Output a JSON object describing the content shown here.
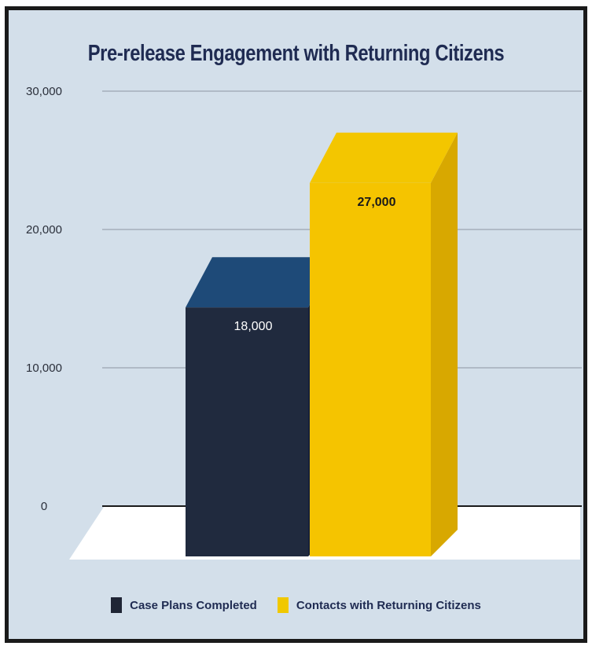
{
  "chart_data": {
    "type": "bar",
    "title": "Pre-release Engagement with Returning Citizens",
    "categories": [
      "Case Plans Completed",
      "Contacts with Returning Citizens"
    ],
    "values": [
      18000,
      27000
    ],
    "data_labels": [
      "18,000",
      "27,000"
    ],
    "ylim": [
      0,
      30000
    ],
    "yticks": [
      0,
      10000,
      20000,
      30000
    ],
    "ytick_labels": [
      "0",
      "10,000",
      "20,000",
      "30,000"
    ],
    "grid": true,
    "legend_placement": "bottom",
    "colors": {
      "case_plans_front": "#202a3e",
      "case_plans_top": "#1e4a78",
      "case_plans_side": "#16203a",
      "contacts_front": "#f5c400",
      "contacts_top": "#f3c600",
      "contacts_side": "#d8a800",
      "background": "#d3dfea"
    }
  },
  "legend": {
    "items": [
      {
        "label": "Case Plans Completed",
        "color": "#1f2535"
      },
      {
        "label": "Contacts with Returning Citizens",
        "color": "#f0c800"
      }
    ]
  }
}
